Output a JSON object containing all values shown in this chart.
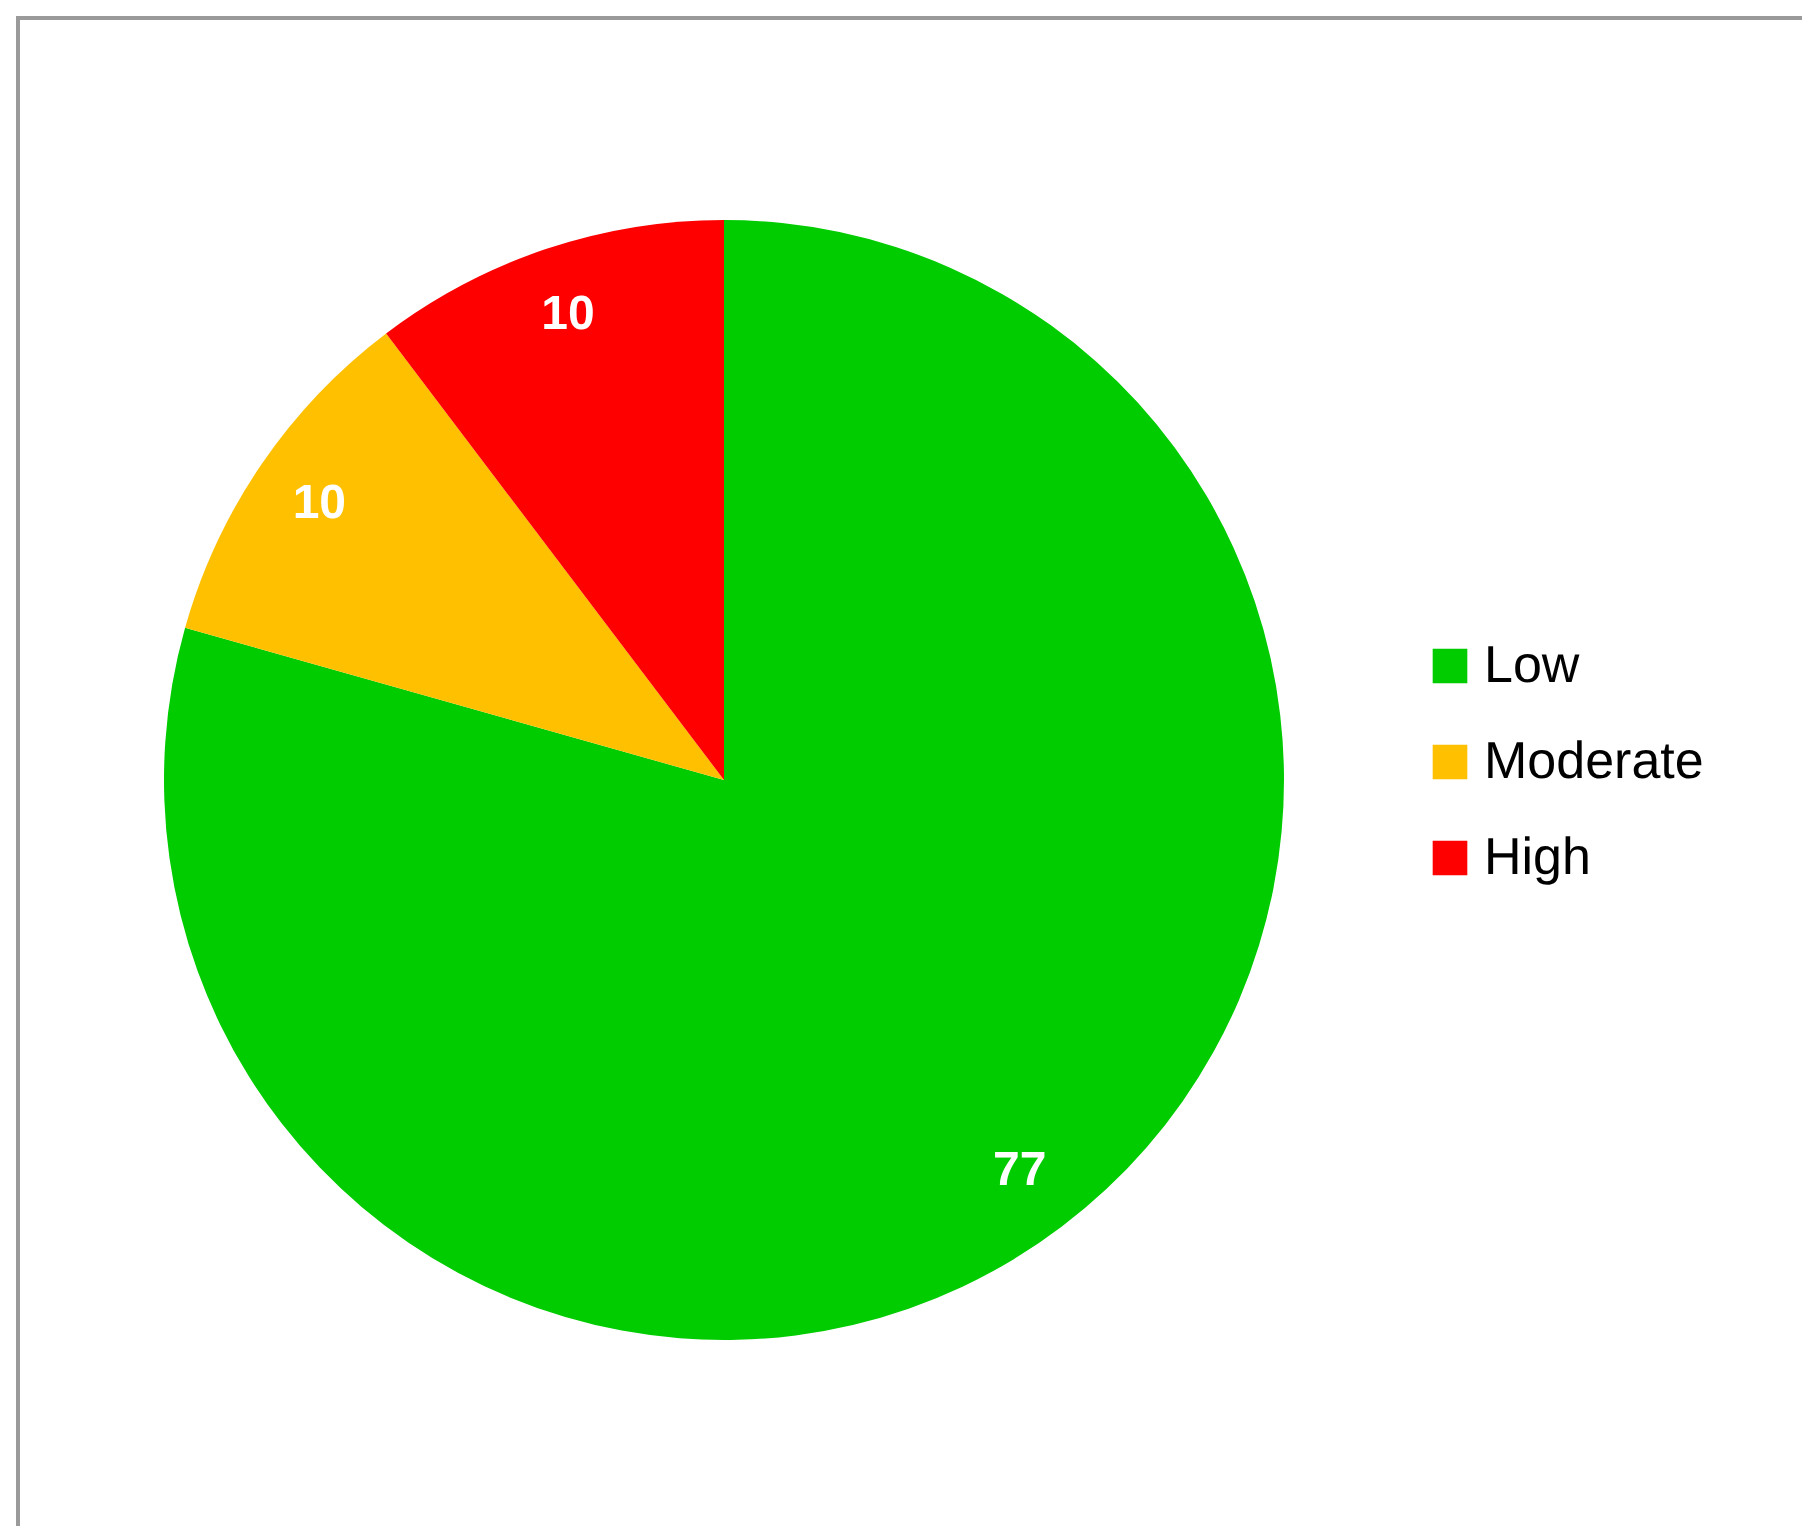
{
  "chart_data": {
    "type": "pie",
    "categories": [
      "Low",
      "Moderate",
      "High"
    ],
    "values": [
      77,
      10,
      10
    ],
    "colors": [
      "#00cc00",
      "#ffc000",
      "#ff0000"
    ],
    "data_labels": true,
    "legend": "right"
  }
}
